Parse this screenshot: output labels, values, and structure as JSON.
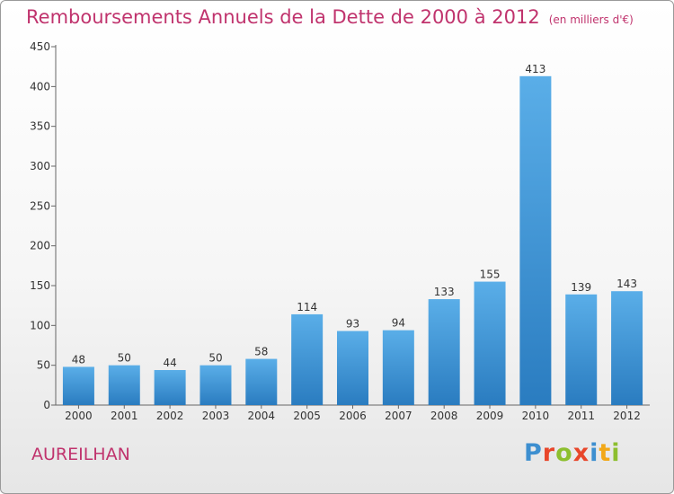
{
  "header": {
    "title": "Remboursements Annuels de la Dette de 2000 à 2012",
    "unit": "(en milliers d'€)"
  },
  "footer": {
    "city": "AUREILHAN",
    "brand": "Proxiti",
    "brand_colors": [
      "#3d8fd0",
      "#e8462a",
      "#8dbf2f",
      "#e8462a",
      "#3d8fd0",
      "#f2a818",
      "#8dbf2f"
    ]
  },
  "colors": {
    "bar_top": "#5aaee8",
    "bar_bottom": "#2a7cc0",
    "accent": "#c0336d"
  },
  "chart_data": {
    "type": "bar",
    "categories": [
      "2000",
      "2001",
      "2002",
      "2003",
      "2004",
      "2005",
      "2006",
      "2007",
      "2008",
      "2009",
      "2010",
      "2011",
      "2012"
    ],
    "values": [
      48,
      50,
      44,
      50,
      58,
      114,
      93,
      94,
      133,
      155,
      413,
      139,
      143
    ],
    "ylim": [
      0,
      450
    ],
    "yticks": [
      0,
      50,
      100,
      150,
      200,
      250,
      300,
      350,
      400,
      450
    ],
    "grid": false
  }
}
